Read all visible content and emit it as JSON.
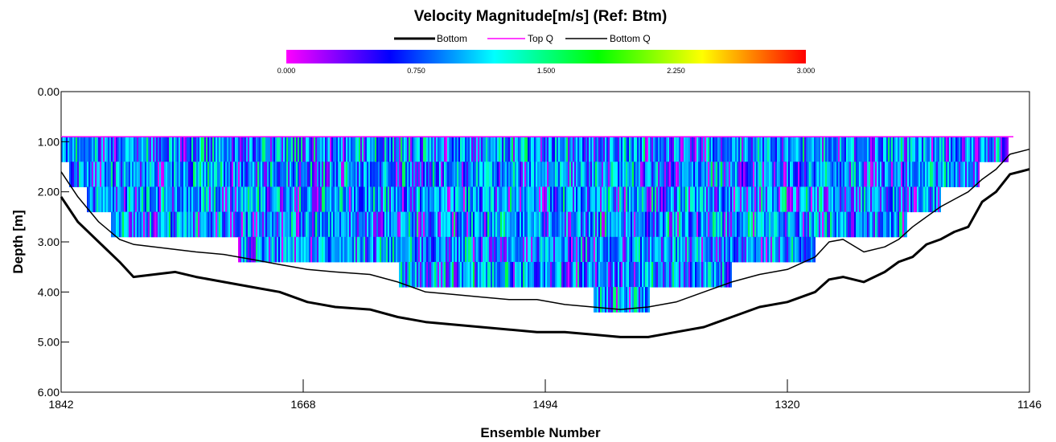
{
  "chart_data": {
    "type": "heatmap",
    "title": "Velocity Magnitude[m/s] (Ref: Btm)",
    "xlabel": "Ensemble Number",
    "ylabel": "Depth [m]",
    "x_range": [
      1842,
      1146
    ],
    "x_reversed": true,
    "y_range": [
      0,
      6
    ],
    "y_reversed": true,
    "x_ticks": [
      "1842",
      "1668",
      "1494",
      "1320",
      "1146"
    ],
    "y_ticks": [
      "0.00",
      "1.00",
      "2.00",
      "3.00",
      "4.00",
      "5.00",
      "6.00"
    ],
    "colorbar": {
      "min": 0,
      "max": 3,
      "ticks": [
        "0.000",
        "0.750",
        "1.500",
        "2.250",
        "3.000"
      ],
      "colors": [
        "#ff00ff",
        "#0000ff",
        "#00ffff",
        "#00ff00",
        "#ffff00",
        "#ff0000"
      ]
    },
    "legend": {
      "placement": "top-center",
      "entries": [
        {
          "label": "Bottom",
          "color": "#000000"
        },
        {
          "label": "Top Q",
          "color": "#ff00ff"
        },
        {
          "label": "Bottom Q",
          "color": "#000000"
        }
      ]
    },
    "top_q_depth": 0.9,
    "series": [
      {
        "name": "Bottom",
        "x": [
          1842,
          1830,
          1815,
          1800,
          1790,
          1775,
          1760,
          1745,
          1725,
          1705,
          1685,
          1665,
          1645,
          1620,
          1600,
          1580,
          1560,
          1540,
          1520,
          1500,
          1480,
          1460,
          1440,
          1420,
          1400,
          1380,
          1360,
          1340,
          1320,
          1300,
          1290,
          1280,
          1265,
          1250,
          1240,
          1230,
          1220,
          1210,
          1200,
          1190,
          1180,
          1170,
          1160,
          1146
        ],
        "y": [
          2.1,
          2.6,
          3.0,
          3.4,
          3.7,
          3.65,
          3.6,
          3.7,
          3.8,
          3.9,
          4.0,
          4.2,
          4.3,
          4.35,
          4.5,
          4.6,
          4.65,
          4.7,
          4.75,
          4.8,
          4.8,
          4.85,
          4.9,
          4.9,
          4.8,
          4.7,
          4.5,
          4.3,
          4.2,
          4.0,
          3.75,
          3.7,
          3.8,
          3.6,
          3.4,
          3.3,
          3.05,
          2.95,
          2.8,
          2.7,
          2.2,
          2.0,
          1.65,
          1.55
        ]
      },
      {
        "name": "Bottom Q",
        "x": [
          1842,
          1830,
          1815,
          1800,
          1790,
          1775,
          1760,
          1745,
          1725,
          1705,
          1685,
          1665,
          1645,
          1620,
          1600,
          1580,
          1560,
          1540,
          1520,
          1500,
          1480,
          1460,
          1440,
          1420,
          1400,
          1380,
          1360,
          1340,
          1320,
          1300,
          1290,
          1280,
          1265,
          1250,
          1240,
          1230,
          1220,
          1210,
          1200,
          1190,
          1180,
          1170,
          1160,
          1146
        ],
        "y": [
          1.6,
          2.1,
          2.6,
          2.95,
          3.05,
          3.1,
          3.15,
          3.2,
          3.25,
          3.35,
          3.45,
          3.55,
          3.6,
          3.65,
          3.8,
          4.0,
          4.05,
          4.1,
          4.15,
          4.15,
          4.25,
          4.3,
          4.35,
          4.3,
          4.2,
          4.0,
          3.8,
          3.65,
          3.55,
          3.3,
          3.0,
          2.95,
          3.2,
          3.1,
          2.95,
          2.7,
          2.5,
          2.3,
          2.15,
          2.0,
          1.75,
          1.55,
          1.25,
          1.15
        ]
      }
    ]
  }
}
